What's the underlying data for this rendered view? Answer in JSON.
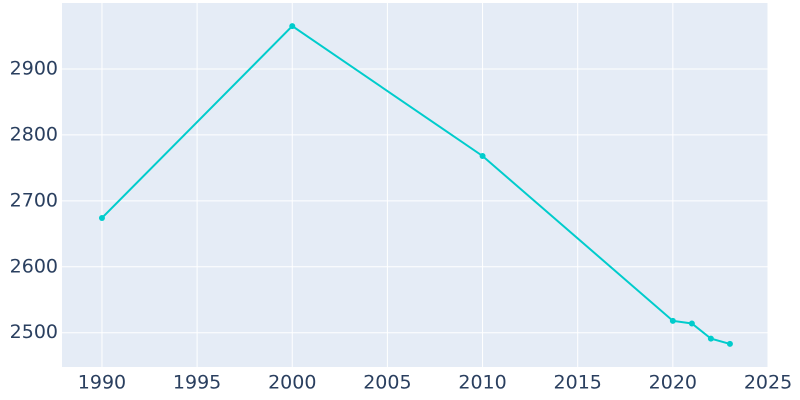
{
  "chart_data": {
    "type": "line",
    "x": [
      1990,
      2000,
      2010,
      2020,
      2021,
      2022,
      2023
    ],
    "series": [
      {
        "color": "#00cccc",
        "values": [
          2674,
          2965,
          2768,
          2518,
          2514,
          2491,
          2483
        ]
      }
    ],
    "xlim": [
      1987.9,
      2025
    ],
    "ylim": [
      2448,
      3000
    ],
    "xticks": [
      1990,
      1995,
      2000,
      2005,
      2010,
      2015,
      2020,
      2025
    ],
    "yticks": [
      2500,
      2600,
      2700,
      2800,
      2900
    ],
    "grid": true
  }
}
